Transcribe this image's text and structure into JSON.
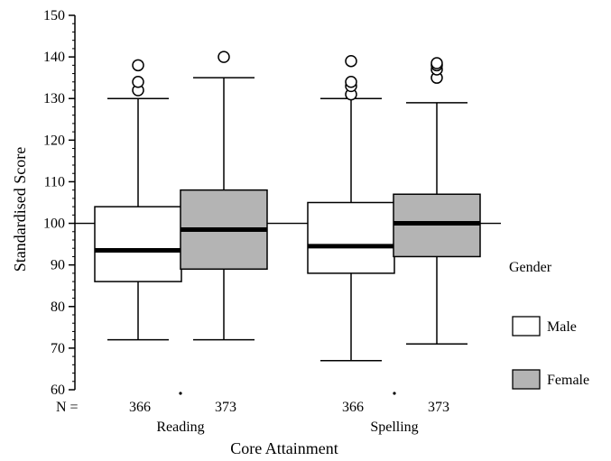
{
  "chart_data": {
    "type": "box",
    "ylabel": "Standardised Score",
    "xlabel": "Core Attainment",
    "ylim": [
      60,
      150
    ],
    "yticks": [
      60,
      70,
      80,
      90,
      100,
      110,
      120,
      130,
      140,
      150
    ],
    "reference_line": 100,
    "n_label": "N =",
    "categories": [
      "Reading",
      "Spelling"
    ],
    "legend": {
      "title": "Gender",
      "placement": "right",
      "items": [
        {
          "name": "Male",
          "color": "#ffffff"
        },
        {
          "name": "Female",
          "color": "#b4b4b4"
        }
      ]
    },
    "series": [
      {
        "name": "Male",
        "color": "#ffffff",
        "boxes": [
          {
            "category": "Reading",
            "n": "366",
            "min": 72,
            "q1": 86,
            "median": 93.5,
            "q3": 104,
            "max": 130,
            "outliers": [
              132,
              134,
              138
            ]
          },
          {
            "category": "Spelling",
            "n": "366",
            "min": 67,
            "q1": 88,
            "median": 94.5,
            "q3": 105,
            "max": 130,
            "outliers": [
              131,
              133,
              134,
              139
            ]
          }
        ]
      },
      {
        "name": "Female",
        "color": "#b4b4b4",
        "boxes": [
          {
            "category": "Reading",
            "n": "373",
            "min": 72,
            "q1": 89,
            "median": 98.5,
            "q3": 108,
            "max": 135,
            "outliers": [
              140
            ]
          },
          {
            "category": "Spelling",
            "n": "373",
            "min": 71,
            "q1": 92,
            "median": 100,
            "q3": 107,
            "max": 129,
            "outliers": [
              135,
              137,
              138,
              138.5
            ]
          }
        ]
      }
    ]
  }
}
